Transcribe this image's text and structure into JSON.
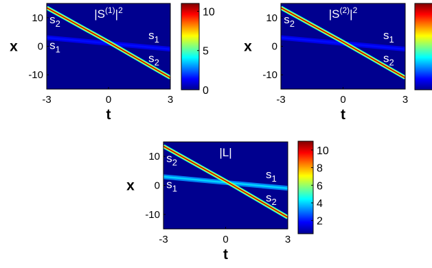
{
  "chart_data": [
    {
      "type": "heatmap",
      "title": "|S(1)|2",
      "title_main": "|S",
      "title_sup": "(1)",
      "title_end": "|",
      "title_sup2": "2",
      "xlabel": "t",
      "ylabel": "x",
      "xlim": [
        -3,
        3
      ],
      "ylim": [
        -15,
        15
      ],
      "xticks": [
        "-3",
        "0",
        "3"
      ],
      "yticks": [
        "10",
        "0",
        "-10"
      ],
      "colorbar": {
        "ticks": [
          "10",
          "5",
          "0"
        ],
        "range": [
          0,
          11
        ]
      },
      "solitons": [
        {
          "name": "s2",
          "t": [
            -3,
            0,
            3
          ],
          "x": [
            13.5,
            1.5,
            -11
          ],
          "peak": 10.5
        },
        {
          "name": "s1",
          "t": [
            -3,
            0,
            3
          ],
          "x": [
            3,
            1,
            -1
          ],
          "peak": 1.5
        }
      ],
      "labels": [
        {
          "text": "s",
          "sub": "2",
          "t": -2.6,
          "x": 8
        },
        {
          "text": "s",
          "sub": "1",
          "t": -2.6,
          "x": -1
        },
        {
          "text": "s",
          "sub": "1",
          "t": 2.2,
          "x": 2.5
        },
        {
          "text": "s",
          "sub": "2",
          "t": 2.2,
          "x": -5.5
        }
      ]
    },
    {
      "type": "heatmap",
      "title": "|S(2)|2",
      "title_main": "|S",
      "title_sup": "(2)",
      "title_end": "|",
      "title_sup2": "2",
      "xlabel": "t",
      "ylabel": "x",
      "xlim": [
        -3,
        3
      ],
      "ylim": [
        -15,
        15
      ],
      "xticks": [
        "-3",
        "0",
        "3"
      ],
      "yticks": [
        "10",
        "0",
        "-10"
      ],
      "colorbar": {
        "ticks": [],
        "range": [
          0,
          11
        ]
      },
      "solitons": [
        {
          "name": "s2",
          "t": [
            -3,
            0,
            3
          ],
          "x": [
            13.5,
            1.5,
            -11
          ],
          "peak": 10.5
        },
        {
          "name": "s1",
          "t": [
            -3,
            0,
            3
          ],
          "x": [
            3,
            1,
            -1
          ],
          "peak": 1.5
        }
      ],
      "labels": [
        {
          "text": "s",
          "sub": "2",
          "t": -2.6,
          "x": 8
        },
        {
          "text": "s",
          "sub": "1",
          "t": 2.2,
          "x": 2.5
        },
        {
          "text": "s",
          "sub": "2",
          "t": 2.2,
          "x": -5.5
        }
      ]
    },
    {
      "type": "heatmap",
      "title": "|L|",
      "title_main": "|L|",
      "title_sup": "",
      "title_end": "",
      "title_sup2": "",
      "xlabel": "t",
      "ylabel": "x",
      "xlim": [
        -3,
        3
      ],
      "ylim": [
        -15,
        15
      ],
      "xticks": [
        "-3",
        "0",
        "3"
      ],
      "yticks": [
        "10",
        "0",
        "-10"
      ],
      "colorbar": {
        "ticks": [
          "10",
          "8",
          "6",
          "4",
          "2"
        ],
        "range": [
          0.5,
          11
        ]
      },
      "solitons": [
        {
          "name": "s2",
          "t": [
            -3,
            0,
            3
          ],
          "x": [
            13.5,
            1.5,
            -11
          ],
          "peak": 10.5
        },
        {
          "name": "s1",
          "t": [
            -3,
            0,
            3
          ],
          "x": [
            3,
            1,
            -1
          ],
          "peak": 4.0
        }
      ],
      "labels": [
        {
          "text": "s",
          "sub": "2",
          "t": -2.6,
          "x": 8
        },
        {
          "text": "s",
          "sub": "1",
          "t": -2.6,
          "x": -1
        },
        {
          "text": "s",
          "sub": "1",
          "t": 2.2,
          "x": 2.5
        },
        {
          "text": "s",
          "sub": "2",
          "t": 2.2,
          "x": -5.5
        }
      ]
    }
  ],
  "colors": {
    "background": "#00008f",
    "jet": [
      "#00008f",
      "#0000ff",
      "#0080ff",
      "#00ffff",
      "#80ff80",
      "#ffff00",
      "#ff8000",
      "#ff0000",
      "#800000"
    ]
  }
}
